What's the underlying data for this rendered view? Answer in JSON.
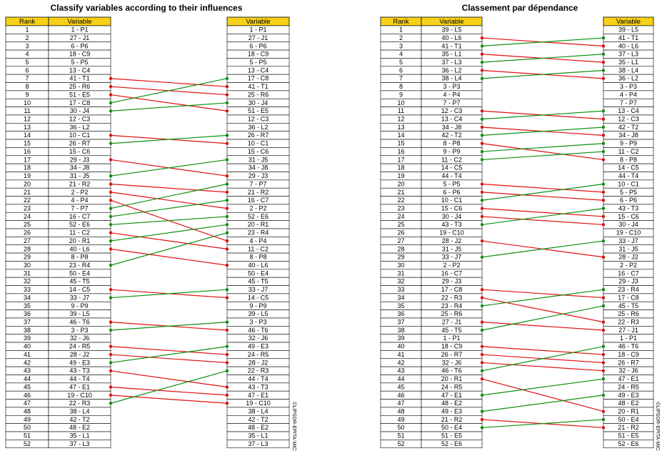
{
  "panels": [
    {
      "title": "Classify variables according to their influences",
      "headers": [
        "Rank",
        "Variable",
        "Variable"
      ],
      "credit": "©LIPSOR-EPITA-MICMAC",
      "ranks": [
        1,
        2,
        3,
        4,
        5,
        6,
        7,
        8,
        9,
        10,
        11,
        12,
        13,
        14,
        15,
        16,
        17,
        18,
        19,
        20,
        21,
        22,
        23,
        24,
        25,
        26,
        27,
        28,
        29,
        30,
        31,
        32,
        33,
        34,
        35,
        36,
        37,
        38,
        39,
        40,
        41,
        42,
        43,
        44,
        45,
        46,
        47,
        48,
        49,
        50,
        51,
        52
      ],
      "left": [
        "1 - P1",
        "27 - J1",
        "6 - P6",
        "18 - C9",
        "5 - P5",
        "13 - C4",
        "41 - T1",
        "25 - R6",
        "51 - E5",
        "17 - C8",
        "30 - J4",
        "12 - C3",
        "36 - L2",
        "10 - C1",
        "26 - R7",
        "15 - C6",
        "29 - J3",
        "34 - J8",
        "31 - J5",
        "21 - R2",
        "2 - P2",
        "4 - P4",
        "7 - P7",
        "16 - C7",
        "52 - E6",
        "11 - C2",
        "20 - R1",
        "40 - L6",
        "8 - P8",
        "23 - R4",
        "50 - E4",
        "45 - T5",
        "14 - C5",
        "33 - J7",
        "9 - P9",
        "39 - L5",
        "46 - T6",
        "3 - P3",
        "32 - J6",
        "24 - R5",
        "28 - J2",
        "49 - E3",
        "43 - T3",
        "44 - T4",
        "47 - E1",
        "19 - C10",
        "22 - R3",
        "38 - L4",
        "42 - T2",
        "48 - E2",
        "35 - L1",
        "37 - L3"
      ],
      "right": [
        "1 - P1",
        "27 - J1",
        "6 - P6",
        "18 - C9",
        "5 - P5",
        "13 - C4",
        "17 - C8",
        "41 - T1",
        "25 - R6",
        "30 - J4",
        "51 - E5",
        "12 - C3",
        "36 - L2",
        "26 - R7",
        "10 - C1",
        "15 - C6",
        "31 - J5",
        "34 - J8",
        "29 - J3",
        "7 - P7",
        "21 - R2",
        "16 - C7",
        "2 - P2",
        "52 - E6",
        "20 - R1",
        "23 - R4",
        "4 - P4",
        "11 - C2",
        "8 - P8",
        "40 - L6",
        "50 - E4",
        "45 - T5",
        "33 - J7",
        "14 - C5",
        "9 - P9",
        "39 - L5",
        "3 - P3",
        "46 - T6",
        "32 - J6",
        "49 - E3",
        "24 - R5",
        "28 - J2",
        "22 - R3",
        "44 - T4",
        "43 - T3",
        "47 - E1",
        "19 - C10",
        "38 - L4",
        "42 - T2",
        "48 - E2",
        "35 - L1",
        "37 - L3"
      ]
    },
    {
      "title": "Classement par dépendance",
      "headers": [
        "Rank",
        "Variable",
        "Variable"
      ],
      "credit": "©LIPSOR-EPITA-MICMAC",
      "ranks": [
        1,
        2,
        3,
        4,
        5,
        6,
        7,
        8,
        9,
        10,
        11,
        12,
        13,
        14,
        15,
        16,
        17,
        18,
        19,
        20,
        21,
        22,
        23,
        24,
        25,
        26,
        27,
        28,
        29,
        30,
        31,
        32,
        33,
        34,
        35,
        36,
        37,
        38,
        39,
        40,
        41,
        42,
        43,
        44,
        45,
        46,
        47,
        48,
        49,
        50,
        51,
        52
      ],
      "left": [
        "39 - L5",
        "40 - L6",
        "41 - T1",
        "35 - L1",
        "37 - L3",
        "36 - L2",
        "38 - L4",
        "3 - P3",
        "4 - P4",
        "7 - P7",
        "12 - C3",
        "13 - C4",
        "34 - J8",
        "42 - T2",
        "8 - P8",
        "9 - P9",
        "11 - C2",
        "14 - C5",
        "44 - T4",
        "5 - P5",
        "6 - P6",
        "10 - C1",
        "15 - C6",
        "30 - J4",
        "43 - T3",
        "19 - C10",
        "28 - J2",
        "31 - J5",
        "33 - J7",
        "2 - P2",
        "16 - C7",
        "29 - J3",
        "17 - C8",
        "22 - R3",
        "23 - R4",
        "25 - R6",
        "27 - J1",
        "45 - T5",
        "1 - P1",
        "18 - C9",
        "26 - R7",
        "32 - J6",
        "46 - T6",
        "20 - R1",
        "24 - R5",
        "47 - E1",
        "48 - E2",
        "49 - E3",
        "21 - R2",
        "50 - E4",
        "51 - E5",
        "52 - E6"
      ],
      "right": [
        "39 - L5",
        "41 - T1",
        "40 - L6",
        "37 - L3",
        "35 - L1",
        "38 - L4",
        "36 - L2",
        "3 - P3",
        "4 - P4",
        "7 - P7",
        "13 - C4",
        "12 - C3",
        "42 - T2",
        "34 - J8",
        "9 - P9",
        "11 - C2",
        "8 - P8",
        "14 - C5",
        "44 - T4",
        "10 - C1",
        "5 - P5",
        "6 - P6",
        "43 - T3",
        "15 - C6",
        "30 - J4",
        "19 - C10",
        "33 - J7",
        "31 - J5",
        "28 - J2",
        "2 - P2",
        "16 - C7",
        "29 - J3",
        "23 - R4",
        "17 - C8",
        "45 - T5",
        "25 - R6",
        "22 - R3",
        "27 - J1",
        "1 - P1",
        "46 - T6",
        "18 - C9",
        "26 - R7",
        "32 - J6",
        "47 - E1",
        "24 - R5",
        "49 - E3",
        "48 - E2",
        "20 - R1",
        "50 - E4",
        "21 - R2",
        "51 - E5",
        "52 - E6"
      ]
    }
  ]
}
